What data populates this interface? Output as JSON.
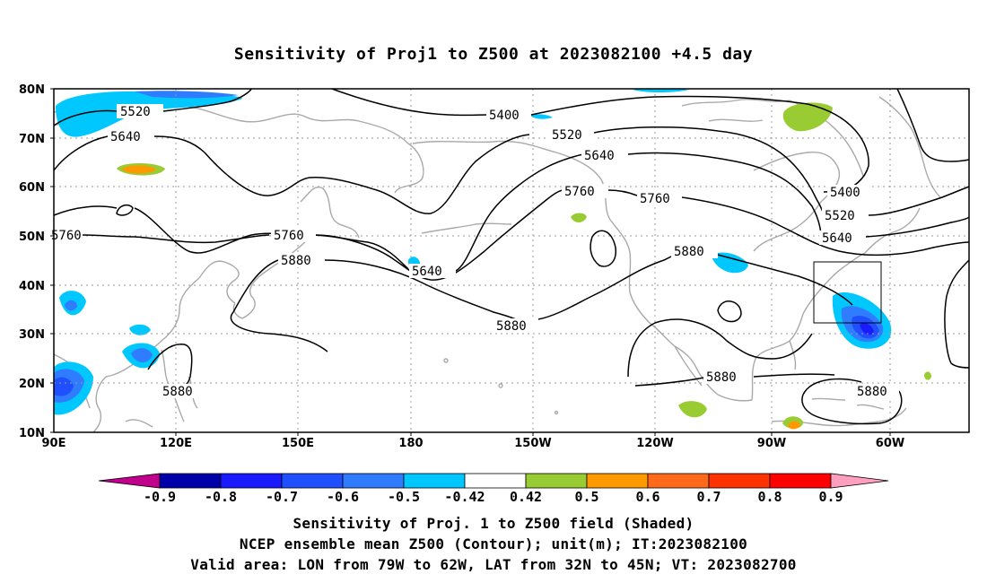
{
  "title": "Sensitivity of Proj1 to Z500 at 2023082100 +4.5 day",
  "axes": {
    "lat_labels": [
      "80N",
      "70N",
      "60N",
      "50N",
      "40N",
      "30N",
      "20N",
      "10N"
    ],
    "lon_labels": [
      "90E",
      "120E",
      "150E",
      "180",
      "150W",
      "120W",
      "90W",
      "60W"
    ]
  },
  "contours": {
    "levels": [
      "5400",
      "5520",
      "5640",
      "5760",
      "5880"
    ],
    "labels": [
      {
        "text": "5520",
        "name": "contour-label-5520-a"
      },
      {
        "text": "5640",
        "name": "contour-label-5640-a"
      },
      {
        "text": "5400",
        "name": "contour-label-5400-a"
      },
      {
        "text": "5520",
        "name": "contour-label-5520-b"
      },
      {
        "text": "5640",
        "name": "contour-label-5640-b"
      },
      {
        "text": "5760",
        "name": "contour-label-5760-a"
      },
      {
        "text": "5760",
        "name": "contour-label-5760-b"
      },
      {
        "text": "5400",
        "name": "contour-label-5400-b"
      },
      {
        "text": "5520",
        "name": "contour-label-5520-c"
      },
      {
        "text": "5640",
        "name": "contour-label-5640-c"
      },
      {
        "text": "5760",
        "name": "contour-label-5760-c"
      },
      {
        "text": "5880",
        "name": "contour-label-5880-a"
      },
      {
        "text": "5760",
        "name": "contour-label-5760-d"
      },
      {
        "text": "5640",
        "name": "contour-label-5640-d"
      },
      {
        "text": "5880",
        "name": "contour-label-5880-b"
      },
      {
        "text": "5880",
        "name": "contour-label-5880-c"
      },
      {
        "text": "5880",
        "name": "contour-label-5880-d"
      },
      {
        "text": "5880",
        "name": "contour-label-5880-e"
      },
      {
        "text": "5880",
        "name": "contour-label-5880-f"
      }
    ]
  },
  "valid_box": {
    "lon_from": "79W",
    "lon_to": "62W",
    "lat_from": "32N",
    "lat_to": "45N"
  },
  "colorbar": {
    "labels": [
      "-0.9",
      "-0.8",
      "-0.7",
      "-0.6",
      "-0.5",
      "-0.42",
      "0.42",
      "0.5",
      "0.6",
      "0.7",
      "0.8",
      "0.9"
    ],
    "colors": [
      "#0000aa",
      "#1a1aff",
      "#1f4fff",
      "#2f7cff",
      "#00c8ff",
      "#ffffff",
      "#99cc33",
      "#ff9900",
      "#ff6a1a",
      "#ff3300",
      "#ff0000"
    ],
    "low_end_color": "#c0008a",
    "high_end_color": "#ff9fc0"
  },
  "captions": {
    "line1": "Sensitivity of Proj. 1 to Z500 field (Shaded)",
    "line2": "NCEP ensemble mean Z500 (Contour); unit(m); IT:2023082100",
    "line3": "Valid area: LON from 79W to 62W, LAT from 32N to 45N; VT: 2023082700"
  }
}
